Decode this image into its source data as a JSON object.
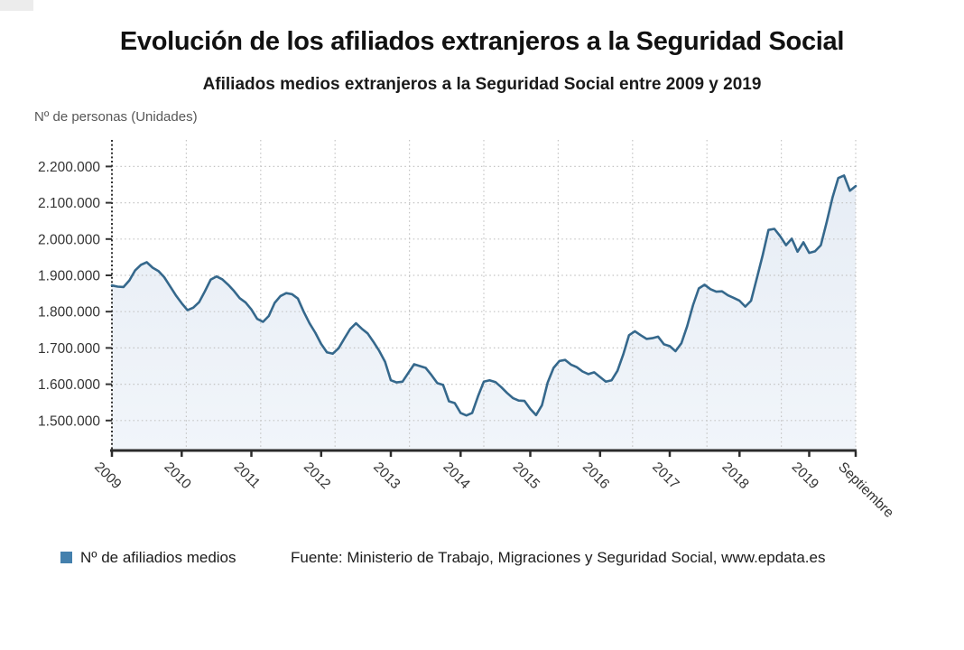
{
  "header": {
    "title": "Evolución de los afiliados extranjeros a la Seguridad Social",
    "subtitle": "Afiliados medios extranjeros a la Seguridad Social entre 2009 y 2019",
    "y_axis_title": "Nº de personas (Unidades)"
  },
  "legend": {
    "marker_color": "#4480ad",
    "label": "Nº de afiliadios medios"
  },
  "source": {
    "text": "Fuente: Ministerio de Trabajo, Migraciones y Seguridad Social, www.epdata.es"
  },
  "chart_data": {
    "type": "area",
    "title": "Evolución de los afiliados extranjeros a la Seguridad Social",
    "subtitle": "Afiliados medios extranjeros a la Seguridad Social entre 2009 y 2019",
    "ylabel": "Nº de personas (Unidades)",
    "frequency": "monthly",
    "x_start": "2009-01",
    "x_end": "2019-09",
    "ylim": [
      1420000,
      2273000
    ],
    "grid": "dotted",
    "legend_position": "bottom-left",
    "y_gridlines": [
      {
        "value": 2200000,
        "label": "2.200.000"
      },
      {
        "value": 2100000,
        "label": "2.100.000"
      },
      {
        "value": 2000000,
        "label": "2.000.000"
      },
      {
        "value": 1900000,
        "label": "1.900.000"
      },
      {
        "value": 1800000,
        "label": "1.800.000"
      },
      {
        "value": 1700000,
        "label": "1.700.000"
      },
      {
        "value": 1600000,
        "label": "1.600.000"
      },
      {
        "value": 1500000,
        "label": "1.500.000"
      }
    ],
    "x_ticks": [
      {
        "label": "2009",
        "month_index": 0
      },
      {
        "label": "2010",
        "month_index": 12
      },
      {
        "label": "2011",
        "month_index": 24
      },
      {
        "label": "2012",
        "month_index": 36
      },
      {
        "label": "2013",
        "month_index": 48
      },
      {
        "label": "2014",
        "month_index": 60
      },
      {
        "label": "2015",
        "month_index": 72
      },
      {
        "label": "2016",
        "month_index": 84
      },
      {
        "label": "2017",
        "month_index": 96
      },
      {
        "label": "2018",
        "month_index": 108
      },
      {
        "label": "2019",
        "month_index": 120
      },
      {
        "label": "Septiembre",
        "month_index": 128
      }
    ],
    "vertical_gridline_divisions": 10,
    "colors": {
      "line": "#35688c",
      "area_top": "#e7edf5",
      "area_bottom": "#f1f5fa",
      "gridline": "#c4c4c4",
      "axis": "#2b2b2b",
      "tick_label": "#333333"
    },
    "series": [
      {
        "name": "Nº de afiliadios medios",
        "values": [
          1872000,
          1869000,
          1868000,
          1886000,
          1914000,
          1929000,
          1936000,
          1921000,
          1912000,
          1895000,
          1870000,
          1845000,
          1823000,
          1804000,
          1811000,
          1826000,
          1856000,
          1888000,
          1897000,
          1889000,
          1874000,
          1857000,
          1837000,
          1825000,
          1806000,
          1780000,
          1772000,
          1788000,
          1824000,
          1843000,
          1851000,
          1848000,
          1836000,
          1800000,
          1768000,
          1742000,
          1711000,
          1688000,
          1684000,
          1699000,
          1726000,
          1752000,
          1768000,
          1753000,
          1740000,
          1717000,
          1692000,
          1662000,
          1611000,
          1605000,
          1607000,
          1631000,
          1655000,
          1650000,
          1645000,
          1625000,
          1603000,
          1598000,
          1553000,
          1548000,
          1521000,
          1514000,
          1521000,
          1567000,
          1607000,
          1611000,
          1606000,
          1592000,
          1576000,
          1562000,
          1555000,
          1554000,
          1532000,
          1515000,
          1542000,
          1605000,
          1645000,
          1664000,
          1667000,
          1654000,
          1647000,
          1635000,
          1628000,
          1633000,
          1620000,
          1607000,
          1611000,
          1637000,
          1682000,
          1735000,
          1746000,
          1735000,
          1725000,
          1727000,
          1731000,
          1710000,
          1705000,
          1691000,
          1713000,
          1760000,
          1818000,
          1864000,
          1874000,
          1862000,
          1855000,
          1856000,
          1845000,
          1838000,
          1830000,
          1814000,
          1830000,
          1893000,
          1956000,
          2025000,
          2028000,
          2008000,
          1983000,
          2001000,
          1965000,
          1991000,
          1962000,
          1966000,
          1983000,
          2046000,
          2114000,
          2168000,
          2175000,
          2133000,
          2146000
        ]
      }
    ]
  }
}
